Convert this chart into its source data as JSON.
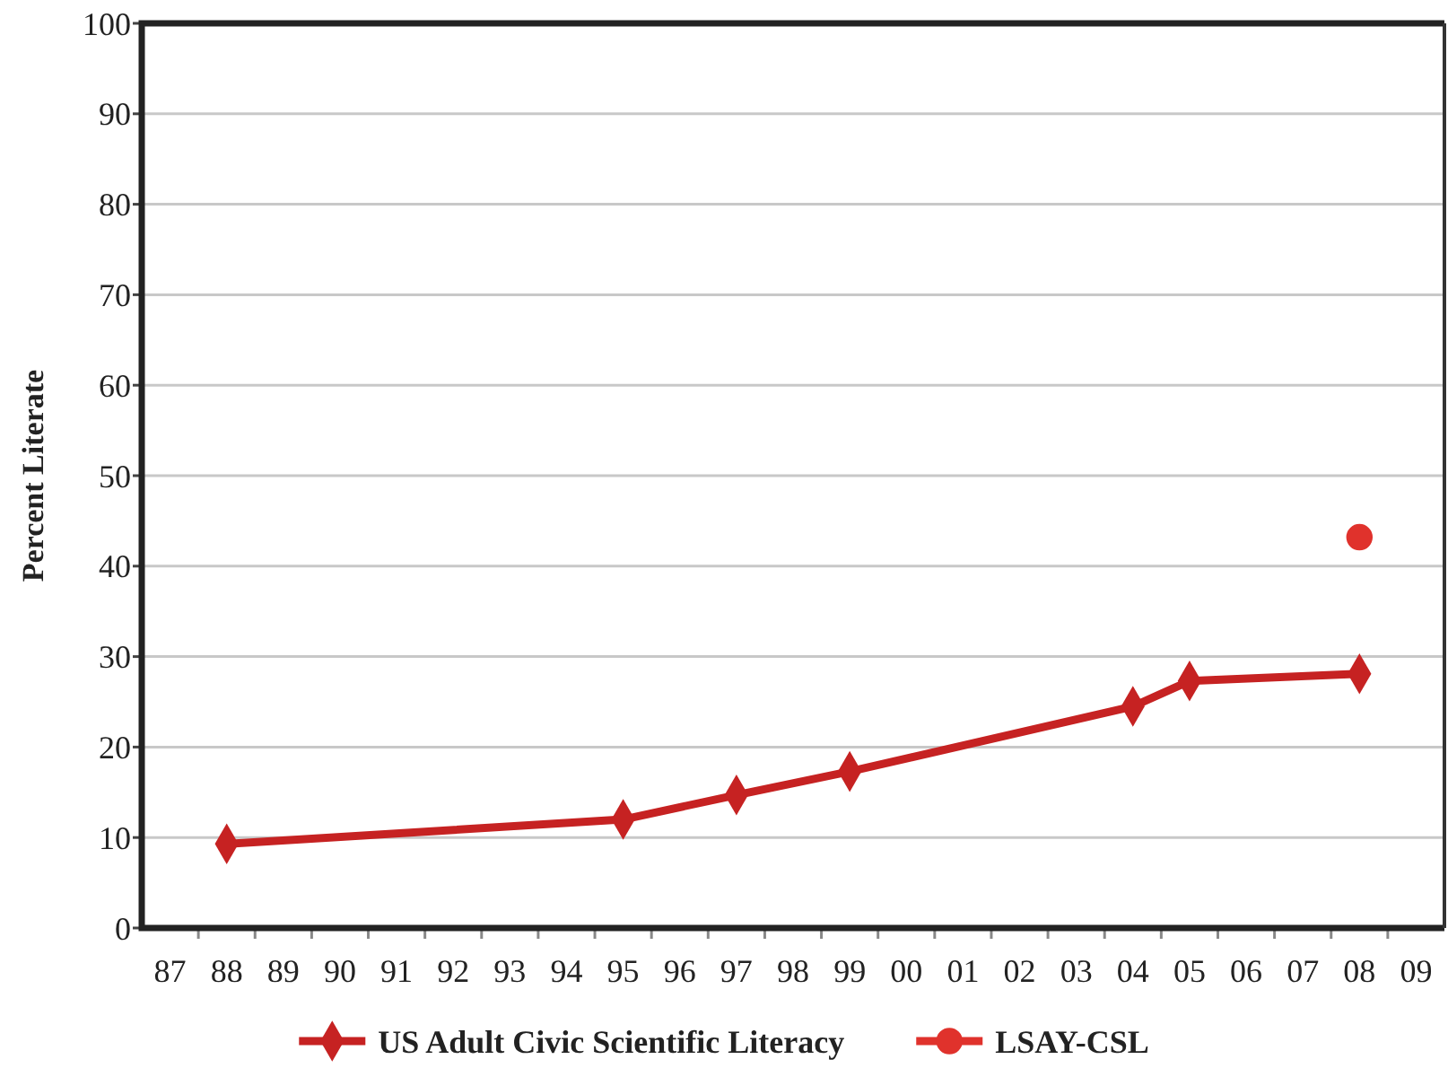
{
  "chart_data": {
    "type": "line",
    "ylabel": "Percent Literate",
    "xlim": [
      1986.5,
      2009.5
    ],
    "xticks": [
      {
        "value": 1987,
        "label": "87"
      },
      {
        "value": 1987.5,
        "label": null
      },
      {
        "value": 1988,
        "label": "88"
      },
      {
        "value": 1988.5,
        "label": null
      },
      {
        "value": 1989,
        "label": "89"
      },
      {
        "value": 1989.5,
        "label": null
      },
      {
        "value": 1990,
        "label": "90"
      },
      {
        "value": 1990.5,
        "label": null
      },
      {
        "value": 1991,
        "label": "91"
      },
      {
        "value": 1991.5,
        "label": null
      },
      {
        "value": 1992,
        "label": "92"
      },
      {
        "value": 1992.5,
        "label": null
      },
      {
        "value": 1993,
        "label": "93"
      },
      {
        "value": 1993.5,
        "label": null
      },
      {
        "value": 1994,
        "label": "94"
      },
      {
        "value": 1994.5,
        "label": null
      },
      {
        "value": 1995,
        "label": "95"
      },
      {
        "value": 1995.5,
        "label": null
      },
      {
        "value": 1996,
        "label": "96"
      },
      {
        "value": 1996.5,
        "label": null
      },
      {
        "value": 1997,
        "label": "97"
      },
      {
        "value": 1997.5,
        "label": null
      },
      {
        "value": 1998,
        "label": "98"
      },
      {
        "value": 1998.5,
        "label": null
      },
      {
        "value": 1999,
        "label": "99"
      },
      {
        "value": 1999.5,
        "label": null
      },
      {
        "value": 2000,
        "label": "00"
      },
      {
        "value": 2000.5,
        "label": null
      },
      {
        "value": 2001,
        "label": "01"
      },
      {
        "value": 2001.5,
        "label": null
      },
      {
        "value": 2002,
        "label": "02"
      },
      {
        "value": 2002.5,
        "label": null
      },
      {
        "value": 2003,
        "label": "03"
      },
      {
        "value": 2003.5,
        "label": null
      },
      {
        "value": 2004,
        "label": "04"
      },
      {
        "value": 2004.5,
        "label": null
      },
      {
        "value": 2005,
        "label": "05"
      },
      {
        "value": 2005.5,
        "label": null
      },
      {
        "value": 2006,
        "label": "06"
      },
      {
        "value": 2006.5,
        "label": null
      },
      {
        "value": 2007,
        "label": "07"
      },
      {
        "value": 2007.5,
        "label": null
      },
      {
        "value": 2008,
        "label": "08"
      },
      {
        "value": 2008.5,
        "label": null
      },
      {
        "value": 2009,
        "label": "09"
      }
    ],
    "ylim": [
      0,
      100
    ],
    "yticks": [
      0,
      10,
      20,
      30,
      40,
      50,
      60,
      70,
      80,
      90,
      100
    ],
    "grid": "y",
    "legend": "bottom",
    "series": [
      {
        "name": "US Adult Civic Scientific Literacy",
        "marker": "diamond",
        "color": "#c62222",
        "x": [
          1988,
          1995,
          1997,
          1999,
          2004,
          2005,
          2008
        ],
        "values": [
          9.3,
          12.0,
          14.7,
          17.3,
          24.5,
          27.3,
          28.1
        ]
      },
      {
        "name": "LSAY-CSL",
        "marker": "circle",
        "color": "#e0322c",
        "x": [
          2008
        ],
        "values": [
          43.2
        ]
      }
    ]
  }
}
